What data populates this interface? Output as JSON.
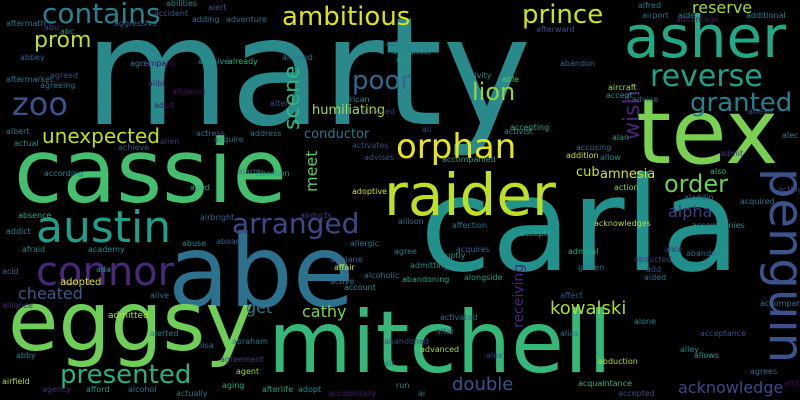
{
  "background_color": "#000000",
  "words": [
    {
      "text": "marty",
      "color": "#2a8a8b"
    },
    {
      "text": "carla",
      "color": "#21918c"
    },
    {
      "text": "cassie",
      "color": "#44bf70"
    },
    {
      "text": "mitchell",
      "color": "#35b779"
    },
    {
      "text": "abe",
      "color": "#2c718e"
    },
    {
      "text": "eggsy",
      "color": "#6ece58"
    },
    {
      "text": "tex",
      "color": "#7ad151"
    },
    {
      "text": "raider",
      "color": "#bddf26"
    },
    {
      "text": "asher",
      "color": "#22a884"
    },
    {
      "text": "penguin",
      "color": "#3b528b"
    },
    {
      "text": "austin",
      "color": "#1f9e89"
    },
    {
      "text": "connor",
      "color": "#482878"
    },
    {
      "text": "reverse",
      "color": "#1fa187"
    },
    {
      "text": "orphan",
      "color": "#e7e419"
    },
    {
      "text": "ambitious",
      "color": "#dde318"
    },
    {
      "text": "contains",
      "color": "#26828e"
    },
    {
      "text": "arranged",
      "color": "#3e4989"
    },
    {
      "text": "prince",
      "color": "#cae11f"
    },
    {
      "text": "granted",
      "color": "#277f8e"
    },
    {
      "text": "presented",
      "color": "#29af7f"
    },
    {
      "text": "zoo",
      "color": "#3b528b"
    },
    {
      "text": "poor",
      "color": "#31688e"
    },
    {
      "text": "order",
      "color": "#6ccd5a"
    },
    {
      "text": "lion",
      "color": "#8fd744"
    },
    {
      "text": "wish",
      "color": "#482475"
    },
    {
      "text": "kowalski",
      "color": "#addc30"
    },
    {
      "text": "prom",
      "color": "#bddf26"
    },
    {
      "text": "unexpected",
      "color": "#c2df23"
    },
    {
      "text": "scene",
      "color": "#2fb47c"
    },
    {
      "text": "double",
      "color": "#3b528b"
    },
    {
      "text": "alpha",
      "color": "#433e85"
    },
    {
      "text": "cheated",
      "color": "#38598c"
    },
    {
      "text": "acknowledge",
      "color": "#3e4989"
    },
    {
      "text": "meet",
      "color": "#5ec962"
    },
    {
      "text": "get",
      "color": "#2c728e"
    },
    {
      "text": "cathy",
      "color": "#7fd34e"
    },
    {
      "text": "humiliating",
      "color": "#a8db34"
    },
    {
      "text": "amnesia",
      "color": "#d8e219"
    },
    {
      "text": "conductor",
      "color": "#2a788e"
    },
    {
      "text": "receiving",
      "color": "#482677"
    },
    {
      "text": "cub",
      "color": "#c5e021"
    },
    {
      "text": "reserve",
      "color": "#a2da37"
    },
    {
      "text": "adopted",
      "color": "#dde318"
    },
    {
      "text": "admitted",
      "color": "#b5de2b"
    },
    {
      "text": "abc",
      "color": "#1f948c"
    },
    {
      "text": "accident",
      "color": "#3a548c"
    },
    {
      "text": "abilities",
      "color": "#228d8d"
    },
    {
      "text": "aggressive",
      "color": "#35608d"
    },
    {
      "text": "adding",
      "color": "#29788e"
    },
    {
      "text": "alert",
      "color": "#3b518b"
    },
    {
      "text": "adventure",
      "color": "#2a768e"
    },
    {
      "text": "accompany",
      "color": "#440154"
    },
    {
      "text": "afterward",
      "color": "#3e4a89"
    },
    {
      "text": "abandon",
      "color": "#2f6c8e"
    },
    {
      "text": "alfred",
      "color": "#26818e"
    },
    {
      "text": "additional",
      "color": "#25838e"
    },
    {
      "text": "admit",
      "color": "#46337f"
    },
    {
      "text": "accepts",
      "color": "#22a785"
    },
    {
      "text": "advantage",
      "color": "#481a6c"
    },
    {
      "text": "airport",
      "color": "#2e6f8e"
    },
    {
      "text": "aide",
      "color": "#24868e"
    },
    {
      "text": "ahead",
      "color": "#3d4e8a"
    },
    {
      "text": "alec",
      "color": "#25848e"
    },
    {
      "text": "aftermath",
      "color": "#2b758e"
    },
    {
      "text": "abu",
      "color": "#3e4989"
    },
    {
      "text": "act",
      "color": "#32658e"
    },
    {
      "text": "alexander",
      "color": "#228c8d"
    },
    {
      "text": "allowed",
      "color": "#2d718e"
    },
    {
      "text": "ago",
      "color": "#1e9b8a"
    },
    {
      "text": "abbey",
      "color": "#33638d"
    },
    {
      "text": "aftermarket",
      "color": "#2a778e"
    },
    {
      "text": "agreed",
      "color": "#404588"
    },
    {
      "text": "agreeing",
      "color": "#2c738e"
    },
    {
      "text": "albert",
      "color": "#29798e"
    },
    {
      "text": "actual",
      "color": "#21908d"
    },
    {
      "text": "abusive",
      "color": "#1f978b"
    },
    {
      "text": "already",
      "color": "#31b57b"
    },
    {
      "text": "alerted",
      "color": "#277e8e"
    },
    {
      "text": "african",
      "color": "#20928c"
    },
    {
      "text": "accompany",
      "color": "#2c738e"
    },
    {
      "text": "accused",
      "color": "#443983"
    },
    {
      "text": "activity",
      "color": "#218f8d"
    },
    {
      "text": "activist",
      "color": "#21908d"
    },
    {
      "text": "accepting",
      "color": "#26ad81"
    },
    {
      "text": "accept",
      "color": "#1f968b"
    },
    {
      "text": "aircraft",
      "color": "#a5db36"
    },
    {
      "text": "advice",
      "color": "#2f6b8e"
    },
    {
      "text": "alan",
      "color": "#1fa088"
    },
    {
      "text": "accusing",
      "color": "#2e6e8e"
    },
    {
      "text": "addition",
      "color": "#c8e020"
    },
    {
      "text": "allow",
      "color": "#23888e"
    },
    {
      "text": "action",
      "color": "#84d44b"
    },
    {
      "text": "also",
      "color": "#35b779"
    },
    {
      "text": "aladdin",
      "color": "#2f6c8e"
    },
    {
      "text": "acquired",
      "color": "#2a788e"
    },
    {
      "text": "acting",
      "color": "#424186"
    },
    {
      "text": "able",
      "color": "#52c569"
    },
    {
      "text": "ali",
      "color": "#3b518b"
    },
    {
      "text": "achieve",
      "color": "#38598c"
    },
    {
      "text": "alien",
      "color": "#472c7a"
    },
    {
      "text": "adult",
      "color": "#471365"
    },
    {
      "text": "alibi",
      "color": "#481d6f"
    },
    {
      "text": "allowing",
      "color": "#471063"
    },
    {
      "text": "actress",
      "color": "#2d708e"
    },
    {
      "text": "acquire",
      "color": "#2e6e8e"
    },
    {
      "text": "address",
      "color": "#2a778e"
    },
    {
      "text": "advises",
      "color": "#3c4f8a"
    },
    {
      "text": "activates",
      "color": "#3f4889"
    },
    {
      "text": "accompanied",
      "color": "#1f9f88"
    },
    {
      "text": "according",
      "color": "#23888e"
    },
    {
      "text": "abortion",
      "color": "#1e9b8a"
    },
    {
      "text": "alarm",
      "color": "#2a768e"
    },
    {
      "text": "aged",
      "color": "#25ab82"
    },
    {
      "text": "adoptive",
      "color": "#dae319"
    },
    {
      "text": "affection",
      "color": "#2a778e"
    },
    {
      "text": "acknowledges",
      "color": "#b2dd2d"
    },
    {
      "text": "absence",
      "color": "#26ad81"
    },
    {
      "text": "airbright",
      "color": "#31668e"
    },
    {
      "text": "abducts",
      "color": "#453781"
    },
    {
      "text": "allison",
      "color": "#2e6f8e"
    },
    {
      "text": "addict",
      "color": "#24878e"
    },
    {
      "text": "afraid",
      "color": "#23898e"
    },
    {
      "text": "academy",
      "color": "#20928c"
    },
    {
      "text": "abuse",
      "color": "#21918c"
    },
    {
      "text": "aboard",
      "color": "#34618d"
    },
    {
      "text": "agree",
      "color": "#27808e"
    },
    {
      "text": "abruptly",
      "color": "#20938c"
    },
    {
      "text": "acquires",
      "color": "#32648e"
    },
    {
      "text": "admiral",
      "color": "#28ae80"
    },
    {
      "text": "abducted",
      "color": "#443a83"
    },
    {
      "text": "alice",
      "color": "#482173"
    },
    {
      "text": "accompanies",
      "color": "#20928c"
    },
    {
      "text": "abandon",
      "color": "#2e6e8e"
    },
    {
      "text": "acid",
      "color": "#31668e"
    },
    {
      "text": "ada",
      "color": "#1f998a"
    },
    {
      "text": "airplane",
      "color": "#31678e"
    },
    {
      "text": "affair",
      "color": "#dae319"
    },
    {
      "text": "admitting",
      "color": "#21918c"
    },
    {
      "text": "gotten",
      "color": "#2a778e"
    },
    {
      "text": "accuses",
      "color": "#27808e"
    },
    {
      "text": "add",
      "color": "#3b528b"
    },
    {
      "text": "aided",
      "color": "#2c718e"
    },
    {
      "text": "alliance",
      "color": "#472a7a"
    },
    {
      "text": "alive",
      "color": "#2d708e"
    },
    {
      "text": "active",
      "color": "#2c718e"
    },
    {
      "text": "account",
      "color": "#21908d"
    },
    {
      "text": "alcoholic",
      "color": "#2c728e"
    },
    {
      "text": "abandoning",
      "color": "#22a884"
    },
    {
      "text": "alongside",
      "color": "#1f9f88"
    },
    {
      "text": "affect",
      "color": "#38598c"
    },
    {
      "text": "alone",
      "color": "#24878e"
    },
    {
      "text": "activated",
      "color": "#2d708e"
    },
    {
      "text": "altar",
      "color": "#3e4989"
    },
    {
      "text": "abraham",
      "color": "#2a768e"
    },
    {
      "text": "lisa",
      "color": "#2e6f8e"
    },
    {
      "text": "allergic",
      "color": "#29798e"
    },
    {
      "text": "abandoned",
      "color": "#3e4989"
    },
    {
      "text": "advanced",
      "color": "#a5db36"
    },
    {
      "text": "alex",
      "color": "#3f4889"
    },
    {
      "text": "abduction",
      "color": "#b2dd2d"
    },
    {
      "text": "alley",
      "color": "#228c8d"
    },
    {
      "text": "allows",
      "color": "#1fa188"
    },
    {
      "text": "alias",
      "color": "#2e6e8e"
    },
    {
      "text": "agrees",
      "color": "#2c728e"
    },
    {
      "text": "abby",
      "color": "#277f8e"
    },
    {
      "text": "agreement",
      "color": "#453781"
    },
    {
      "text": "agent",
      "color": "#a2da37"
    },
    {
      "text": "airfield",
      "color": "#b5de2b"
    },
    {
      "text": "agency",
      "color": "#472f7d"
    },
    {
      "text": "afford",
      "color": "#1f9a8a"
    },
    {
      "text": "alcohol",
      "color": "#2a778e"
    },
    {
      "text": "actually",
      "color": "#2e6f8e"
    },
    {
      "text": "aging",
      "color": "#26ad81"
    },
    {
      "text": "afterlife",
      "color": "#20a386"
    },
    {
      "text": "adopt",
      "color": "#21918c"
    },
    {
      "text": "acceptance",
      "color": "#3b528b"
    },
    {
      "text": "acquaintance",
      "color": "#35b779"
    },
    {
      "text": "accepted",
      "color": "#3e4989"
    },
    {
      "text": "accidentally",
      "color": "#481b6d"
    },
    {
      "text": "ai",
      "color": "#2b748e"
    },
    {
      "text": "run",
      "color": "#25858e"
    },
    {
      "text": "air",
      "color": "#2d708e"
    },
    {
      "text": "alter",
      "color": "#3e4c8a"
    },
    {
      "text": "agrees",
      "color": "#2b758e"
    },
    {
      "text": "altitude",
      "color": "#471164"
    }
  ]
}
